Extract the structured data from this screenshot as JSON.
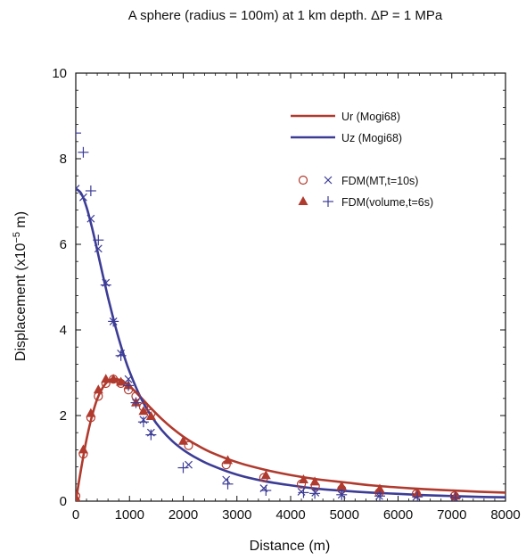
{
  "chart_data": {
    "type": "line",
    "title": "A sphere (radius = 100m) at 1 km depth. ΔP = 1 MPa",
    "xlabel": "Distance (m)",
    "ylabel_main": "Displacement (x10",
    "ylabel_exp": "−5",
    "ylabel_unit": " m)",
    "xlim": [
      0,
      8000
    ],
    "ylim": [
      0,
      10
    ],
    "xticks": [
      0,
      1000,
      2000,
      3000,
      4000,
      5000,
      6000,
      7000,
      8000
    ],
    "yticks": [
      0,
      2,
      4,
      6,
      8,
      10
    ],
    "xtick_labels": [
      "0",
      "1000",
      "2000",
      "3000",
      "4000",
      "5000",
      "6000",
      "7000",
      "8000"
    ],
    "ytick_labels": [
      "0",
      "2",
      "4",
      "6",
      "8",
      "10"
    ],
    "grid": false,
    "legend_position": "top-right",
    "colors": {
      "ur": "#b03a2e",
      "uz": "#3c3c96"
    },
    "series": [
      {
        "name": "Ur (Mogi68)",
        "kind": "line",
        "color": "#b03a2e",
        "x": [
          0,
          100,
          200,
          300,
          400,
          500,
          600,
          700,
          800,
          900,
          1000,
          1200,
          1400,
          1600,
          1800,
          2000,
          2200,
          2500,
          3000,
          3500,
          4000,
          4500,
          5000,
          5500,
          6000,
          6500,
          7000,
          7500,
          8000
        ],
        "y": [
          0,
          0.76,
          1.44,
          1.98,
          2.39,
          2.65,
          2.8,
          2.86,
          2.84,
          2.78,
          2.69,
          2.44,
          2.17,
          1.92,
          1.7,
          1.51,
          1.35,
          1.15,
          0.91,
          0.74,
          0.61,
          0.51,
          0.44,
          0.37,
          0.32,
          0.28,
          0.25,
          0.22,
          0.2
        ]
      },
      {
        "name": "Uz (Mogi68)",
        "kind": "line",
        "color": "#3c3c96",
        "x": [
          0,
          100,
          200,
          300,
          400,
          500,
          600,
          700,
          800,
          900,
          1000,
          1200,
          1400,
          1600,
          1800,
          2000,
          2200,
          2500,
          3000,
          3500,
          4000,
          4500,
          5000,
          5500,
          6000,
          6500,
          7000,
          7500,
          8000
        ],
        "y": [
          7.3,
          7.19,
          6.87,
          6.4,
          5.86,
          5.3,
          4.76,
          4.26,
          3.8,
          3.39,
          3.03,
          2.44,
          2.0,
          1.66,
          1.4,
          1.2,
          1.04,
          0.85,
          0.62,
          0.47,
          0.37,
          0.29,
          0.24,
          0.2,
          0.17,
          0.14,
          0.12,
          0.1,
          0.09
        ]
      },
      {
        "name": "FDM(MT,t=10s) Ur",
        "kind": "marker",
        "marker": "circle",
        "color": "#b03a2e",
        "x": [
          0,
          140,
          280,
          420,
          560,
          700,
          840,
          980,
          1120,
          1260,
          1400,
          2100,
          2800,
          3500,
          4200,
          4460,
          4950,
          5650,
          6340,
          7050
        ],
        "y": [
          0.12,
          1.1,
          1.95,
          2.45,
          2.75,
          2.85,
          2.75,
          2.6,
          2.45,
          2.2,
          2.05,
          1.3,
          0.85,
          0.55,
          0.4,
          0.35,
          0.28,
          0.2,
          0.17,
          0.12
        ]
      },
      {
        "name": "FDM(MT,t=10s) Uz",
        "kind": "marker",
        "marker": "x",
        "color": "#3c3c96",
        "x": [
          0,
          140,
          280,
          420,
          560,
          700,
          840,
          980,
          1120,
          1260,
          1400,
          2100,
          2800,
          3500,
          4200,
          4460,
          4950,
          5650,
          6340,
          7050
        ],
        "y": [
          7.3,
          7.1,
          6.6,
          5.9,
          5.1,
          4.2,
          3.45,
          2.85,
          2.3,
          1.9,
          1.6,
          0.85,
          0.5,
          0.3,
          0.22,
          0.2,
          0.15,
          0.12,
          0.1,
          0.08
        ]
      },
      {
        "name": "FDM(volume,t=6s) Ur",
        "kind": "marker",
        "marker": "triangle",
        "color": "#b03a2e",
        "x": [
          0,
          140,
          280,
          420,
          560,
          700,
          840,
          980,
          1120,
          1260,
          1400,
          2000,
          2830,
          3540,
          4240,
          4450,
          4950,
          5660,
          6360,
          7070
        ],
        "y": [
          0.08,
          1.2,
          2.05,
          2.6,
          2.85,
          2.85,
          2.78,
          2.7,
          2.3,
          2.1,
          1.98,
          1.4,
          0.95,
          0.6,
          0.5,
          0.45,
          0.35,
          0.28,
          0.18,
          0.12
        ]
      },
      {
        "name": "FDM(volume,t=6s) Uz",
        "kind": "marker",
        "marker": "plus",
        "color": "#3c3c96",
        "x": [
          0,
          140,
          280,
          420,
          560,
          700,
          840,
          980,
          1120,
          1260,
          1400,
          2000,
          2830,
          3540,
          4240,
          4450,
          4950,
          5660,
          6360,
          7070
        ],
        "y": [
          8.6,
          8.15,
          7.25,
          6.1,
          5.05,
          4.2,
          3.4,
          2.7,
          2.3,
          1.85,
          1.55,
          0.78,
          0.4,
          0.25,
          0.2,
          0.18,
          0.15,
          0.12,
          0.1,
          0.08
        ]
      }
    ],
    "legend": {
      "lines": [
        {
          "label": "Ur (Mogi68)",
          "color": "#b03a2e"
        },
        {
          "label": "Uz (Mogi68)",
          "color": "#3c3c96"
        }
      ],
      "markers": [
        {
          "label": "FDM(MT,t=10s)",
          "ur_marker": "circle",
          "uz_marker": "x"
        },
        {
          "label": "FDM(volume,t=6s)",
          "ur_marker": "triangle",
          "uz_marker": "plus"
        }
      ]
    }
  }
}
